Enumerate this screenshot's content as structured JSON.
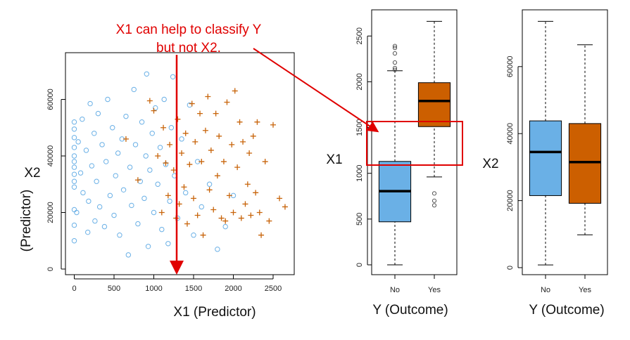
{
  "annotation": {
    "line1": "X1 can help to classify Y",
    "line2": "but not X2.",
    "color": "#e00000"
  },
  "chart_data": [
    {
      "type": "scatter",
      "xlabel": "X1 (Predictor)",
      "ylabel_line1": "X2",
      "ylabel_line2": "(Predictor)",
      "xlim": [
        -100,
        2800
      ],
      "ylim": [
        -3000,
        76000
      ],
      "xticks": [
        "0",
        "500",
        "1000",
        "1500",
        "2000",
        "2500"
      ],
      "yticks": [
        "0",
        "20000",
        "40000",
        "60000"
      ],
      "grid": false,
      "series": [
        {
          "marker": "circle",
          "color": "#6ab0e6",
          "points": [
            [
              0,
              10000
            ],
            [
              0,
              15500
            ],
            [
              0,
              21000
            ],
            [
              0,
              29000
            ],
            [
              0,
              31000
            ],
            [
              0,
              33500
            ],
            [
              0,
              36000
            ],
            [
              0,
              38000
            ],
            [
              0,
              40000
            ],
            [
              0,
              43000
            ],
            [
              0,
              46500
            ],
            [
              0,
              49500
            ],
            [
              0,
              52000
            ],
            [
              30,
              20000
            ],
            [
              50,
              45000
            ],
            [
              80,
              34000
            ],
            [
              100,
              53000
            ],
            [
              110,
              27000
            ],
            [
              150,
              42000
            ],
            [
              170,
              13000
            ],
            [
              180,
              24000
            ],
            [
              200,
              58500
            ],
            [
              220,
              36500
            ],
            [
              250,
              48000
            ],
            [
              260,
              17000
            ],
            [
              280,
              31000
            ],
            [
              300,
              55000
            ],
            [
              320,
              22000
            ],
            [
              350,
              44000
            ],
            [
              380,
              15000
            ],
            [
              400,
              38000
            ],
            [
              420,
              60000
            ],
            [
              450,
              26000
            ],
            [
              480,
              50000
            ],
            [
              500,
              19000
            ],
            [
              520,
              33000
            ],
            [
              550,
              41000
            ],
            [
              570,
              12000
            ],
            [
              600,
              46000
            ],
            [
              620,
              28000
            ],
            [
              650,
              54000
            ],
            [
              680,
              5000
            ],
            [
              700,
              36000
            ],
            [
              720,
              22500
            ],
            [
              750,
              63500
            ],
            [
              770,
              44000
            ],
            [
              800,
              16000
            ],
            [
              830,
              31000
            ],
            [
              850,
              52000
            ],
            [
              880,
              25000
            ],
            [
              900,
              40000
            ],
            [
              910,
              69000
            ],
            [
              930,
              8000
            ],
            [
              950,
              35000
            ],
            [
              980,
              48000
            ],
            [
              1000,
              20000
            ],
            [
              1020,
              57000
            ],
            [
              1050,
              30000
            ],
            [
              1080,
              43000
            ],
            [
              1100,
              14000
            ],
            [
              1130,
              60000
            ],
            [
              1150,
              37000
            ],
            [
              1180,
              9000
            ],
            [
              1200,
              24000
            ],
            [
              1220,
              50000
            ],
            [
              1240,
              68000
            ],
            [
              1260,
              33000
            ],
            [
              1300,
              18000
            ],
            [
              1350,
              46000
            ],
            [
              1400,
              27000
            ],
            [
              1450,
              58000
            ],
            [
              1500,
              12000
            ],
            [
              1550,
              38000
            ],
            [
              1600,
              22000
            ],
            [
              1700,
              30000
            ],
            [
              1800,
              7000
            ],
            [
              1900,
              15000
            ],
            [
              2000,
              26000
            ]
          ]
        },
        {
          "marker": "plus",
          "color": "#c8640a",
          "points": [
            [
              650,
              46000
            ],
            [
              800,
              31500
            ],
            [
              950,
              59500
            ],
            [
              1000,
              56000
            ],
            [
              1050,
              40000
            ],
            [
              1100,
              20000
            ],
            [
              1120,
              50000
            ],
            [
              1150,
              37500
            ],
            [
              1180,
              26000
            ],
            [
              1200,
              44000
            ],
            [
              1250,
              35000
            ],
            [
              1280,
              18000
            ],
            [
              1300,
              53000
            ],
            [
              1320,
              23000
            ],
            [
              1350,
              41000
            ],
            [
              1380,
              29000
            ],
            [
              1400,
              48000
            ],
            [
              1420,
              16000
            ],
            [
              1450,
              37000
            ],
            [
              1480,
              58500
            ],
            [
              1500,
              25000
            ],
            [
              1520,
              45000
            ],
            [
              1550,
              19000
            ],
            [
              1580,
              55000
            ],
            [
              1600,
              38000
            ],
            [
              1620,
              12000
            ],
            [
              1650,
              49000
            ],
            [
              1680,
              61000
            ],
            [
              1700,
              28000
            ],
            [
              1720,
              42000
            ],
            [
              1750,
              21000
            ],
            [
              1780,
              55000
            ],
            [
              1800,
              33000
            ],
            [
              1820,
              47000
            ],
            [
              1850,
              18000
            ],
            [
              1880,
              38000
            ],
            [
              1900,
              17000
            ],
            [
              1920,
              59000
            ],
            [
              1950,
              26000
            ],
            [
              1980,
              44000
            ],
            [
              2000,
              20000
            ],
            [
              2020,
              63000
            ],
            [
              2050,
              36000
            ],
            [
              2080,
              52000
            ],
            [
              2100,
              18000
            ],
            [
              2120,
              45000
            ],
            [
              2150,
              23000
            ],
            [
              2180,
              30000
            ],
            [
              2200,
              41000
            ],
            [
              2220,
              19000
            ],
            [
              2250,
              47000
            ],
            [
              2280,
              27000
            ],
            [
              2300,
              52000
            ],
            [
              2330,
              20000
            ],
            [
              2350,
              12000
            ],
            [
              2400,
              38000
            ],
            [
              2450,
              17000
            ],
            [
              2500,
              51000
            ],
            [
              2580,
              25000
            ],
            [
              2650,
              22000
            ]
          ]
        }
      ]
    },
    {
      "type": "box",
      "ylabel": "X1",
      "xlabel": "Y (Outcome)",
      "categories": [
        "No",
        "Yes"
      ],
      "ylim": [
        -100,
        2720
      ],
      "yticks": [
        "0",
        "500",
        "1000",
        "1500",
        "2000",
        "2500"
      ],
      "colors": [
        "#6ab0e6",
        "#cc5f00"
      ],
      "boxes": [
        {
          "category": "No",
          "whisker_low": 0,
          "q1": 470,
          "median": 805,
          "q3": 1130,
          "whisker_high": 2120,
          "outliers": [
            2130,
            2150,
            2210,
            2310,
            2370,
            2390
          ]
        },
        {
          "category": "Yes",
          "whisker_low": 960,
          "q1": 1510,
          "median": 1790,
          "q3": 1990,
          "whisker_high": 2660,
          "outliers": [
            650,
            700,
            780
          ]
        }
      ]
    },
    {
      "type": "box",
      "ylabel": "X2",
      "xlabel": "Y (Outcome)",
      "categories": [
        "No",
        "Yes"
      ],
      "ylim": [
        -2000,
        77000
      ],
      "yticks": [
        "0",
        "20000",
        "40000",
        "60000"
      ],
      "colors": [
        "#6ab0e6",
        "#cc5f00"
      ],
      "boxes": [
        {
          "category": "No",
          "whisker_low": 800,
          "q1": 21500,
          "median": 34500,
          "q3": 43800,
          "whisker_high": 73500,
          "outliers": []
        },
        {
          "category": "Yes",
          "whisker_low": 9800,
          "q1": 19200,
          "median": 31500,
          "q3": 43000,
          "whisker_high": 66500,
          "outliers": []
        }
      ]
    }
  ]
}
